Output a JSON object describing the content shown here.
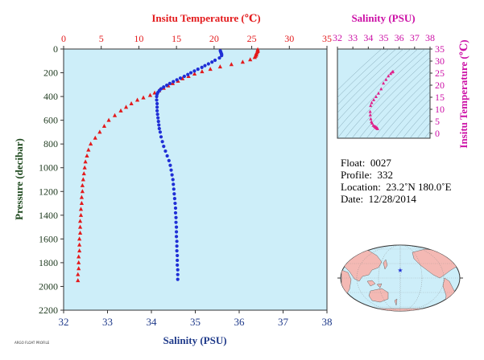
{
  "colors": {
    "temperature": "#e31a1c",
    "salinity": "#1f2fd6",
    "ts_curve": "#e0208a",
    "ts_axis": "#cc10a6",
    "panel_bg": "#cdeef9",
    "axis_text": "#1f3a1f",
    "land": "#f4b9b4",
    "ocean": "#cdeef9"
  },
  "header": {
    "temp_axis_title": "Insitu Temperature (℃)",
    "sal_axis_title_bottom": "Salinity (PSU)",
    "pressure_axis_title": "Pressure (decibar)",
    "ts_top_title": "Salinity (PSU)",
    "ts_right_title": "Insitu Temperature (℃)"
  },
  "info": {
    "float_label": "Float:",
    "float_value": "0027",
    "profile_label": "Profile:",
    "profile_value": "332",
    "location_label": "Location:",
    "location_value": "23.2˚N  180.0˚E",
    "date_label": "Date:",
    "date_value": "12/28/2014"
  },
  "credit": "ARGO FLOAT PROFILE",
  "map": {
    "marker_icon": "star-icon",
    "marker_lat": 23.2,
    "marker_lon": 180.0
  },
  "chart_data": [
    {
      "type": "scatter",
      "name": "profile",
      "ylabel": "Pressure (decibar)",
      "ylim": [
        2200,
        0
      ],
      "yticks": [
        0,
        200,
        400,
        600,
        800,
        1000,
        1200,
        1400,
        1600,
        1800,
        2000,
        2200
      ],
      "top_axis": {
        "label": "Insitu Temperature (℃)",
        "lim": [
          0,
          35
        ],
        "ticks": [
          0,
          5,
          10,
          15,
          20,
          25,
          30,
          35
        ]
      },
      "bottom_axis": {
        "label": "Salinity (PSU)",
        "lim": [
          32,
          38
        ],
        "ticks": [
          32,
          33,
          34,
          35,
          36,
          37,
          38
        ]
      },
      "series": [
        {
          "axis": "temperature",
          "marker": "triangle",
          "points": [
            [
              25.8,
              5
            ],
            [
              25.8,
              10
            ],
            [
              25.8,
              20
            ],
            [
              25.7,
              30
            ],
            [
              25.6,
              40
            ],
            [
              25.6,
              50
            ],
            [
              25.5,
              60
            ],
            [
              25.4,
              70
            ],
            [
              24.8,
              90
            ],
            [
              23.8,
              110
            ],
            [
              22.3,
              130
            ],
            [
              20.8,
              150
            ],
            [
              19.5,
              170
            ],
            [
              18.4,
              190
            ],
            [
              17.4,
              210
            ],
            [
              16.6,
              230
            ],
            [
              15.8,
              250
            ],
            [
              15.2,
              270
            ],
            [
              14.5,
              290
            ],
            [
              13.9,
              310
            ],
            [
              13.3,
              330
            ],
            [
              12.7,
              350
            ],
            [
              12.1,
              370
            ],
            [
              11.5,
              390
            ],
            [
              10.6,
              410
            ],
            [
              9.8,
              430
            ],
            [
              9.0,
              460
            ],
            [
              8.3,
              490
            ],
            [
              7.6,
              520
            ],
            [
              6.8,
              560
            ],
            [
              6.0,
              600
            ],
            [
              5.4,
              650
            ],
            [
              4.8,
              700
            ],
            [
              4.2,
              750
            ],
            [
              3.6,
              800
            ],
            [
              3.3,
              850
            ],
            [
              3.1,
              900
            ],
            [
              2.9,
              950
            ],
            [
              2.8,
              1000
            ],
            [
              2.7,
              1050
            ],
            [
              2.6,
              1100
            ],
            [
              2.5,
              1150
            ],
            [
              2.5,
              1200
            ],
            [
              2.4,
              1250
            ],
            [
              2.4,
              1300
            ],
            [
              2.3,
              1350
            ],
            [
              2.3,
              1400
            ],
            [
              2.2,
              1450
            ],
            [
              2.2,
              1500
            ],
            [
              2.2,
              1550
            ],
            [
              2.1,
              1600
            ],
            [
              2.1,
              1650
            ],
            [
              2.1,
              1700
            ],
            [
              2.0,
              1750
            ],
            [
              2.0,
              1800
            ],
            [
              2.0,
              1850
            ],
            [
              1.9,
              1900
            ],
            [
              1.9,
              1950
            ]
          ]
        },
        {
          "axis": "salinity",
          "marker": "circle",
          "points": [
            [
              35.57,
              15
            ],
            [
              35.58,
              25
            ],
            [
              35.59,
              35
            ],
            [
              35.6,
              45
            ],
            [
              35.6,
              55
            ],
            [
              35.55,
              75
            ],
            [
              35.45,
              95
            ],
            [
              35.38,
              110
            ],
            [
              35.3,
              125
            ],
            [
              35.22,
              140
            ],
            [
              35.15,
              155
            ],
            [
              35.06,
              170
            ],
            [
              34.98,
              185
            ],
            [
              34.9,
              200
            ],
            [
              34.83,
              215
            ],
            [
              34.75,
              230
            ],
            [
              34.66,
              245
            ],
            [
              34.58,
              260
            ],
            [
              34.5,
              275
            ],
            [
              34.42,
              290
            ],
            [
              34.35,
              305
            ],
            [
              34.28,
              320
            ],
            [
              34.22,
              335
            ],
            [
              34.18,
              350
            ],
            [
              34.15,
              365
            ],
            [
              34.13,
              380
            ],
            [
              34.12,
              400
            ],
            [
              34.12,
              430
            ],
            [
              34.13,
              460
            ],
            [
              34.13,
              490
            ],
            [
              34.13,
              520
            ],
            [
              34.14,
              550
            ],
            [
              34.15,
              580
            ],
            [
              34.16,
              610
            ],
            [
              34.17,
              640
            ],
            [
              34.18,
              670
            ],
            [
              34.2,
              700
            ],
            [
              34.22,
              740
            ],
            [
              34.25,
              780
            ],
            [
              34.28,
              820
            ],
            [
              34.32,
              860
            ],
            [
              34.36,
              900
            ],
            [
              34.4,
              940
            ],
            [
              34.43,
              980
            ],
            [
              34.45,
              1020
            ],
            [
              34.47,
              1060
            ],
            [
              34.49,
              1100
            ],
            [
              34.5,
              1140
            ],
            [
              34.51,
              1180
            ],
            [
              34.52,
              1220
            ],
            [
              34.53,
              1260
            ],
            [
              34.54,
              1300
            ],
            [
              34.55,
              1340
            ],
            [
              34.55,
              1380
            ],
            [
              34.56,
              1420
            ],
            [
              34.56,
              1460
            ],
            [
              34.57,
              1500
            ],
            [
              34.57,
              1540
            ],
            [
              34.57,
              1580
            ],
            [
              34.58,
              1620
            ],
            [
              34.58,
              1660
            ],
            [
              34.58,
              1700
            ],
            [
              34.59,
              1740
            ],
            [
              34.59,
              1780
            ],
            [
              34.59,
              1820
            ],
            [
              34.6,
              1860
            ],
            [
              34.6,
              1900
            ],
            [
              34.6,
              1940
            ]
          ]
        }
      ]
    },
    {
      "type": "line",
      "name": "ts-diagram",
      "xlabel": "Salinity (PSU)",
      "ylabel": "Insitu Temperature (℃)",
      "xlim": [
        32,
        38
      ],
      "ylim": [
        -2,
        35
      ],
      "xticks": [
        32,
        33,
        34,
        35,
        36,
        37,
        38
      ],
      "yticks": [
        0,
        5,
        10,
        15,
        20,
        25,
        30,
        35
      ],
      "x": [
        34.6,
        34.59,
        34.57,
        34.55,
        34.52,
        34.49,
        34.45,
        34.4,
        34.32,
        34.25,
        34.2,
        34.16,
        34.13,
        34.12,
        34.15,
        34.22,
        34.35,
        34.5,
        34.66,
        34.83,
        34.98,
        35.15,
        35.3,
        35.45,
        35.55,
        35.6
      ],
      "y": [
        1.9,
        2.0,
        2.1,
        2.2,
        2.3,
        2.5,
        2.7,
        2.9,
        3.3,
        4.2,
        4.8,
        6.0,
        7.6,
        9.0,
        11.5,
        12.7,
        13.9,
        15.2,
        16.6,
        18.4,
        20.8,
        22.3,
        23.8,
        24.8,
        25.4,
        25.6
      ]
    }
  ]
}
